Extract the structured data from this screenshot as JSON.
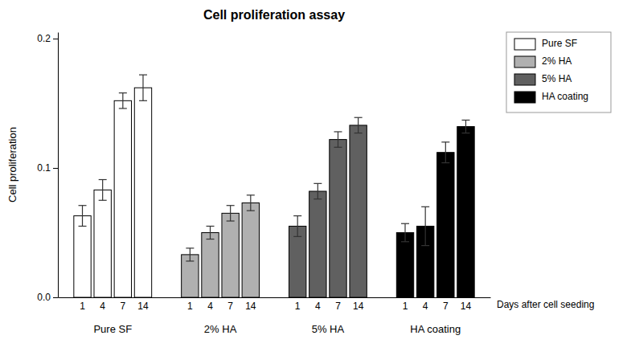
{
  "chart_data": {
    "type": "bar",
    "title": "Cell proliferation assay",
    "ylabel": "Cell proliferation",
    "xlabel": "Days after cell seeding",
    "categories": [
      "1",
      "4",
      "7",
      "14"
    ],
    "series": [
      {
        "name": "Pure SF",
        "color": "#ffffff",
        "values": [
          0.063,
          0.083,
          0.152,
          0.162
        ],
        "errors": [
          0.008,
          0.008,
          0.006,
          0.01
        ]
      },
      {
        "name": "2% HA",
        "color": "#b0b0b0",
        "values": [
          0.033,
          0.05,
          0.065,
          0.073
        ],
        "errors": [
          0.005,
          0.005,
          0.006,
          0.006
        ]
      },
      {
        "name": "5% HA",
        "color": "#606060",
        "values": [
          0.055,
          0.082,
          0.122,
          0.133
        ],
        "errors": [
          0.008,
          0.006,
          0.006,
          0.006
        ]
      },
      {
        "name": "HA coating",
        "color": "#000000",
        "values": [
          0.05,
          0.055,
          0.112,
          0.132
        ],
        "errors": [
          0.007,
          0.015,
          0.008,
          0.005
        ]
      }
    ],
    "ylim": [
      0.0,
      0.205
    ],
    "yticks": [
      {
        "value": 0.0,
        "label": "0.0"
      },
      0.1,
      0.2
    ],
    "grid": false,
    "legend": "upper right"
  }
}
